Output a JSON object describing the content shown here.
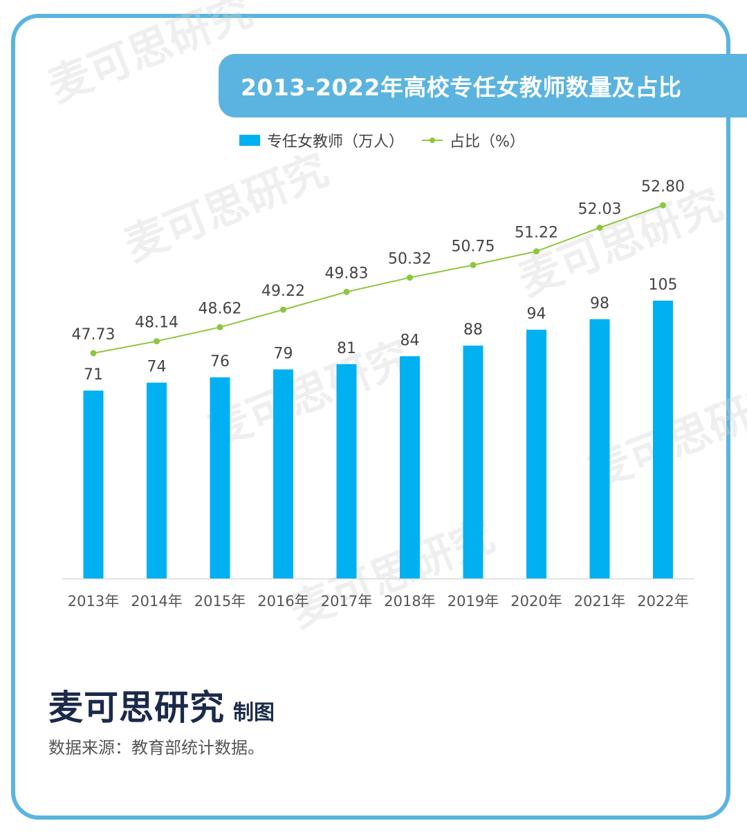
{
  "title": "2013-2022年高校专任女教师数量及占比",
  "legend": {
    "bar_label": "专任女教师（万人）",
    "line_label": "占比（%）"
  },
  "brand": {
    "name": "麦可思研究",
    "suffix": "制图"
  },
  "watermark_text": "麦可思研究",
  "source": "数据来源：教育部统计数据。",
  "colors": {
    "frame": "#5BB4DF",
    "bar": "#00B0F0",
    "line": "#8DC63F",
    "brand": "#1B2A4A"
  },
  "chart_data": {
    "type": "bar+line",
    "categories": [
      "2013年",
      "2014年",
      "2015年",
      "2016年",
      "2017年",
      "2018年",
      "2019年",
      "2020年",
      "2021年",
      "2022年"
    ],
    "series": [
      {
        "name": "专任女教师（万人）",
        "type": "bar",
        "values": [
          71,
          74,
          76,
          79,
          81,
          84,
          88,
          94,
          98,
          105
        ],
        "labels": [
          "71",
          "74",
          "76",
          "79",
          "81",
          "84",
          "88",
          "94",
          "98",
          "105"
        ]
      },
      {
        "name": "占比（%）",
        "type": "line",
        "values": [
          47.73,
          48.14,
          48.62,
          49.22,
          49.83,
          50.32,
          50.75,
          51.22,
          52.03,
          52.8
        ],
        "labels": [
          "47.73",
          "48.14",
          "48.62",
          "49.22",
          "49.83",
          "50.32",
          "50.75",
          "51.22",
          "52.03",
          "52.80"
        ]
      }
    ],
    "bar_axis": {
      "min": 0,
      "max": 105
    },
    "line_axis": {
      "min": 47.73,
      "max": 52.8
    },
    "grid": false,
    "legend_position": "top"
  }
}
